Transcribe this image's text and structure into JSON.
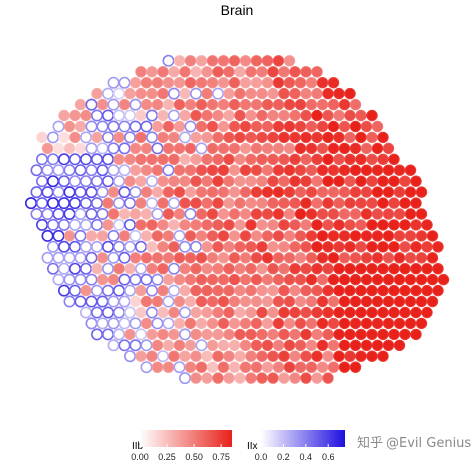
{
  "chart_data": {
    "type": "scatter",
    "title": "Brain",
    "description_style": "spatial spot plot; each spot colored by two signature scores",
    "legends": [
      {
        "name": "IIb",
        "color_low": "#ffffff",
        "color_high": "#e8221b",
        "ticks": [
          "0.00",
          "0.25",
          "0.50",
          "0.75"
        ],
        "range": [
          0,
          0.85
        ]
      },
      {
        "name": "IIx",
        "color_low": "#ffffff",
        "color_high": "#1f0fe0",
        "ticks": [
          "0.0",
          "0.2",
          "0.4",
          "0.6"
        ],
        "range": [
          0,
          0.75
        ]
      }
    ],
    "tissue": {
      "rows": 34,
      "cols": 40,
      "boundary": [
        [
          0.05,
          0.28
        ],
        [
          0.18,
          0.16
        ],
        [
          0.35,
          0.08
        ],
        [
          0.55,
          0.06
        ],
        [
          0.7,
          0.12
        ],
        [
          0.82,
          0.25
        ],
        [
          0.9,
          0.4
        ],
        [
          0.95,
          0.55
        ],
        [
          0.97,
          0.68
        ],
        [
          0.93,
          0.8
        ],
        [
          0.82,
          0.9
        ],
        [
          0.65,
          0.96
        ],
        [
          0.5,
          0.97
        ],
        [
          0.3,
          0.93
        ],
        [
          0.15,
          0.82
        ],
        [
          0.06,
          0.62
        ],
        [
          0.02,
          0.45
        ]
      ]
    }
  },
  "watermark": {
    "logo_text": "知乎",
    "handle": "@Evil Genius"
  },
  "colors": {
    "red": "#e8221b",
    "blue": "#1f0fe0",
    "watermark": "#8a8a8a"
  }
}
